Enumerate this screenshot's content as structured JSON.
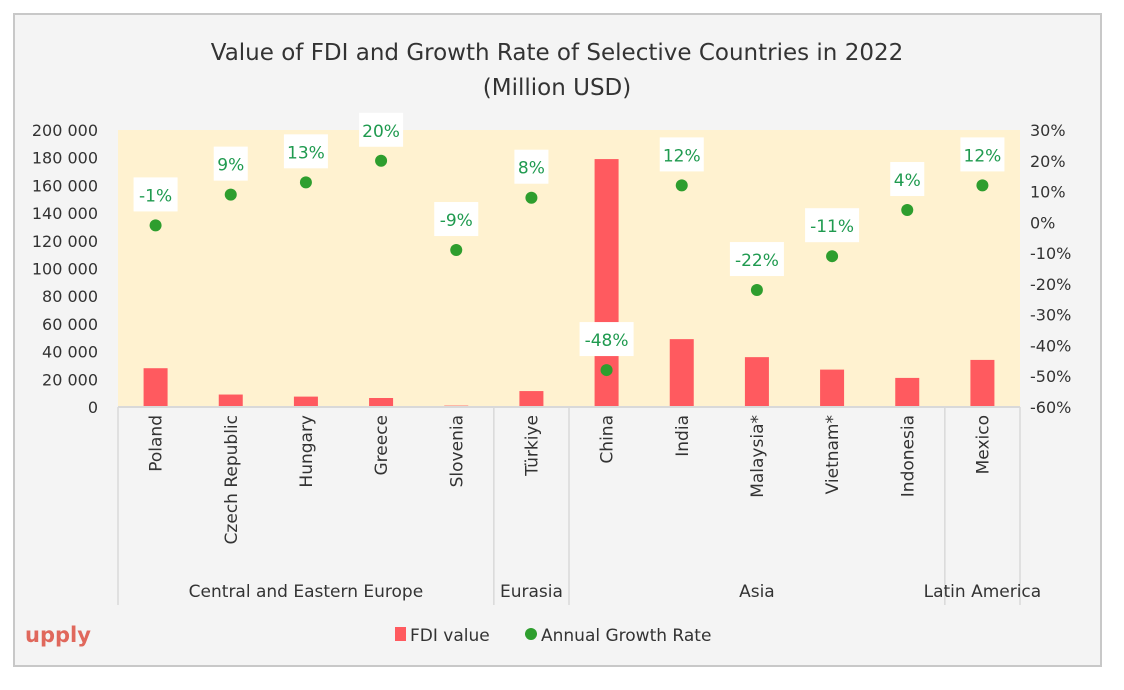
{
  "chart_data": {
    "type": "bar+scatter",
    "title": "Value of FDI and Growth Rate of Selective Countries in 2022",
    "subtitle": "(Million USD)",
    "categories": [
      "Poland",
      "Czech Republic",
      "Hungary",
      "Greece",
      "Slovenia",
      "Türkiye",
      "China",
      "India",
      "Malaysia*",
      "Vietnam*",
      "Indonesia",
      "Mexico"
    ],
    "groups": [
      {
        "label": "Central and Eastern Europe",
        "count": 5
      },
      {
        "label": "Eurasia",
        "count": 1
      },
      {
        "label": "Asia",
        "count": 5
      },
      {
        "label": "Latin America",
        "count": 1
      }
    ],
    "series": [
      {
        "name": "FDI value",
        "type": "bar",
        "axis": "left",
        "color": "#ff5a5f",
        "values": [
          28000,
          9000,
          7500,
          6500,
          1000,
          11500,
          179000,
          49000,
          36000,
          27000,
          21000,
          34000
        ]
      },
      {
        "name": "Annual Growth Rate",
        "type": "scatter",
        "axis": "right",
        "color": "#2e9e2e",
        "values": [
          -1,
          9,
          13,
          20,
          -9,
          8,
          -48,
          12,
          -22,
          -11,
          4,
          12
        ],
        "labels": [
          "-1%",
          "9%",
          "13%",
          "20%",
          "-9%",
          "8%",
          "-48%",
          "12%",
          "-22%",
          "-11%",
          "4%",
          "12%"
        ]
      }
    ],
    "y_left": {
      "range": [
        0,
        200000
      ],
      "ticks": [
        "0",
        "20 000",
        "40 000",
        "60 000",
        "80 000",
        "100 000",
        "120 000",
        "140 000",
        "160 000",
        "180 000",
        "200 000"
      ]
    },
    "y_right": {
      "range": [
        -60,
        30
      ],
      "ticks": [
        "-60%",
        "-50%",
        "-40%",
        "-30%",
        "-20%",
        "-10%",
        "0%",
        "10%",
        "20%",
        "30%"
      ]
    },
    "legend_position": "bottom",
    "grid": false,
    "colors": {
      "plot_background": "#fff2d0",
      "label_text": "#1f9a4f"
    }
  },
  "logo": "upply"
}
